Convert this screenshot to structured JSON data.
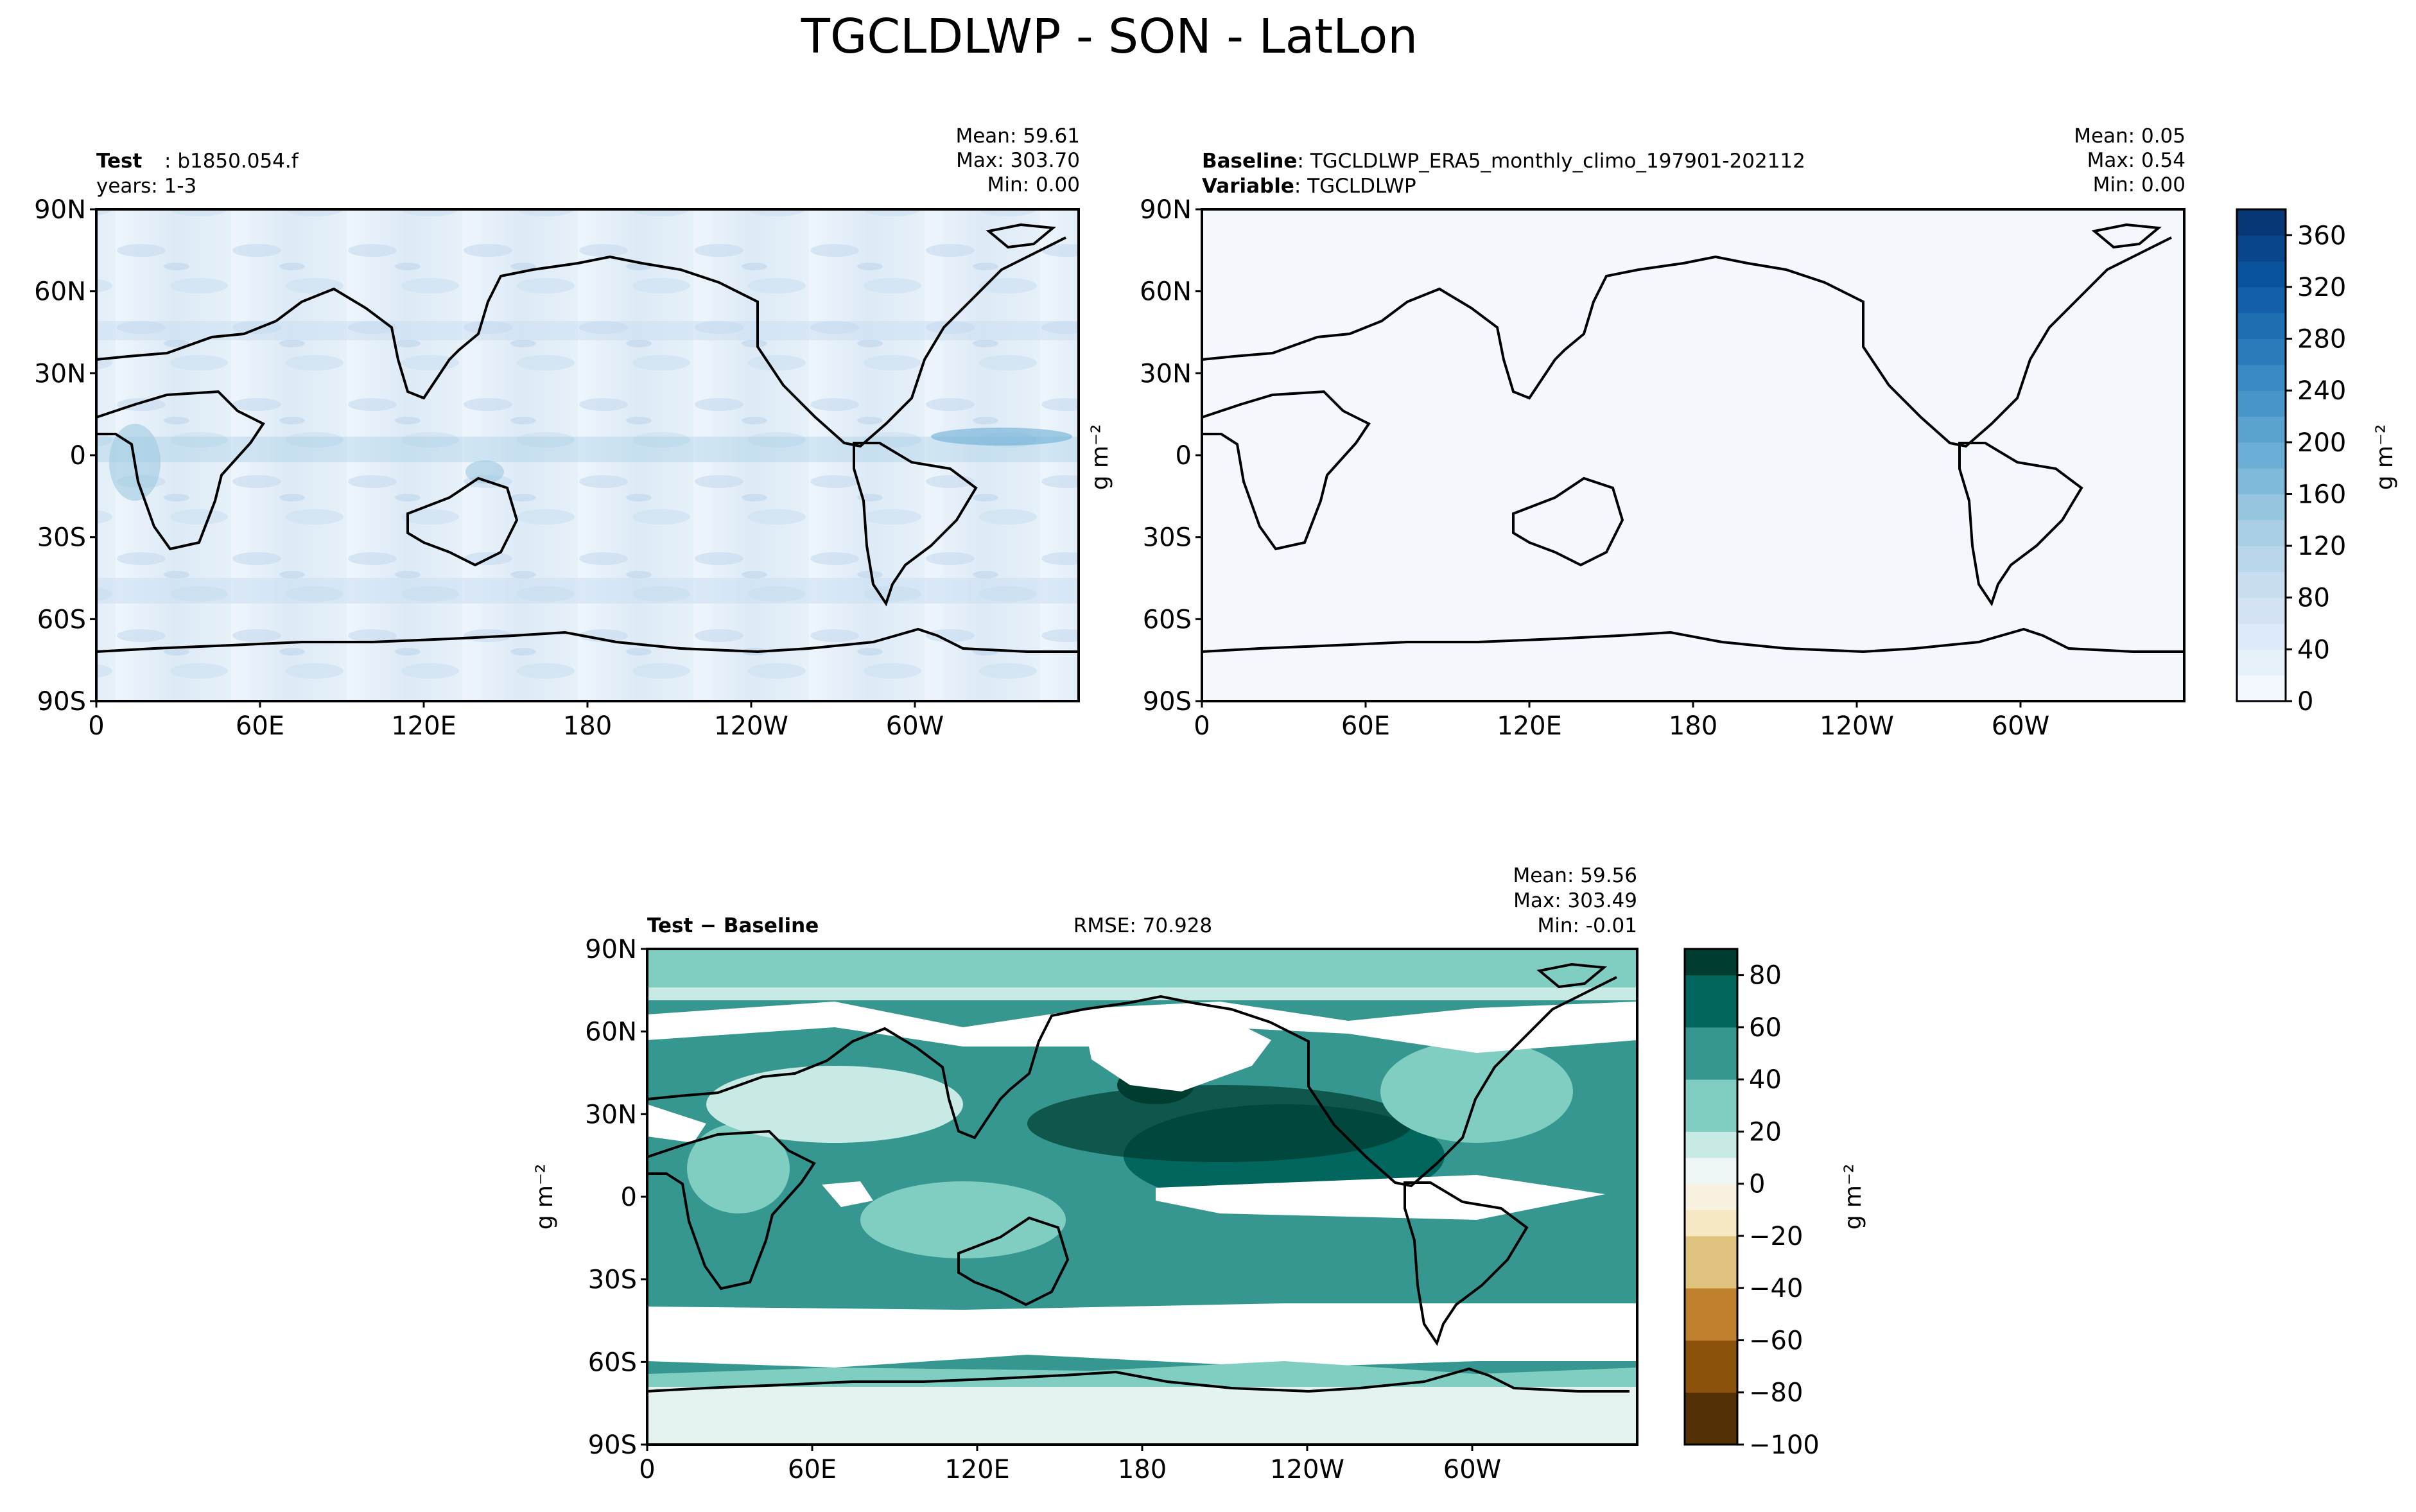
{
  "title": "TGCLDLWP - SON - LatLon",
  "colors": {
    "sequential_cmap": [
      "#f7fbff",
      "#deebf7",
      "#c6dbef",
      "#9ecae1",
      "#6baed6",
      "#4292c6",
      "#2171b5",
      "#08519c",
      "#08306b"
    ],
    "diverging_neg": [
      "#f6e8c3",
      "#dfc27d",
      "#bf812d",
      "#8c510a",
      "#543005"
    ],
    "diverging_pos": [
      "#c7eae5",
      "#80cdc1",
      "#35978f",
      "#01665e",
      "#003c30"
    ],
    "land_outline": "#000000"
  },
  "panels": {
    "test": {
      "label_bold": "Test",
      "label": "b1850.054.f",
      "years": "years: 1-3",
      "stats": {
        "mean": "Mean: 59.61",
        "max": "Max: 303.70",
        "min": "Min:  0.00"
      }
    },
    "baseline": {
      "label_bold": "Baseline",
      "label": "TGCLDLWP_ERA5_monthly_climo_197901-202112",
      "variable_bold": "Variable",
      "variable": "TGCLDLWP",
      "stats": {
        "mean": "Mean:  0.05",
        "max": "Max:  0.54",
        "min": "Min:  0.00"
      }
    },
    "diff": {
      "label_bold": "Test − Baseline",
      "rmse": "RMSE: 70.928",
      "stats": {
        "mean": "Mean: 59.56",
        "max": "Max: 303.49",
        "min": "Min: -0.01"
      }
    }
  },
  "chart_data": [
    {
      "type": "heatmap",
      "panel": "test",
      "map": "LatLon",
      "xticks": [
        "0",
        "60E",
        "120E",
        "180",
        "120W",
        "60W"
      ],
      "yticks": [
        "90N",
        "60N",
        "30N",
        "0",
        "30S",
        "60S",
        "90S"
      ],
      "stats": {
        "mean": 59.61,
        "max": 303.7,
        "min": 0.0
      }
    },
    {
      "type": "heatmap",
      "panel": "baseline",
      "map": "LatLon",
      "xticks": [
        "0",
        "60E",
        "120E",
        "180",
        "120W",
        "60W"
      ],
      "yticks": [
        "90N",
        "60N",
        "30N",
        "0",
        "30S",
        "60S",
        "90S"
      ],
      "stats": {
        "mean": 0.05,
        "max": 0.54,
        "min": 0.0
      },
      "colorbar": {
        "label": "g m⁻²",
        "ticks": [
          "0",
          "40",
          "80",
          "120",
          "160",
          "200",
          "240",
          "280",
          "320",
          "360"
        ],
        "range": [
          0,
          380
        ]
      }
    },
    {
      "type": "heatmap",
      "panel": "diff",
      "map": "LatLon",
      "xticks": [
        "0",
        "60E",
        "120E",
        "180",
        "120W",
        "60W"
      ],
      "yticks": [
        "90N",
        "60N",
        "30N",
        "0",
        "30S",
        "60S",
        "90S"
      ],
      "stats": {
        "mean": 59.56,
        "max": 303.49,
        "min": -0.01,
        "rmse": 70.928
      },
      "colorbar": {
        "label": "g m⁻²",
        "ticks": [
          "−100",
          "−80",
          "−60",
          "−40",
          "−20",
          "0",
          "20",
          "40",
          "60",
          "80"
        ],
        "range": [
          -100,
          90
        ]
      }
    }
  ],
  "ylabel_left": "g m⁻²"
}
